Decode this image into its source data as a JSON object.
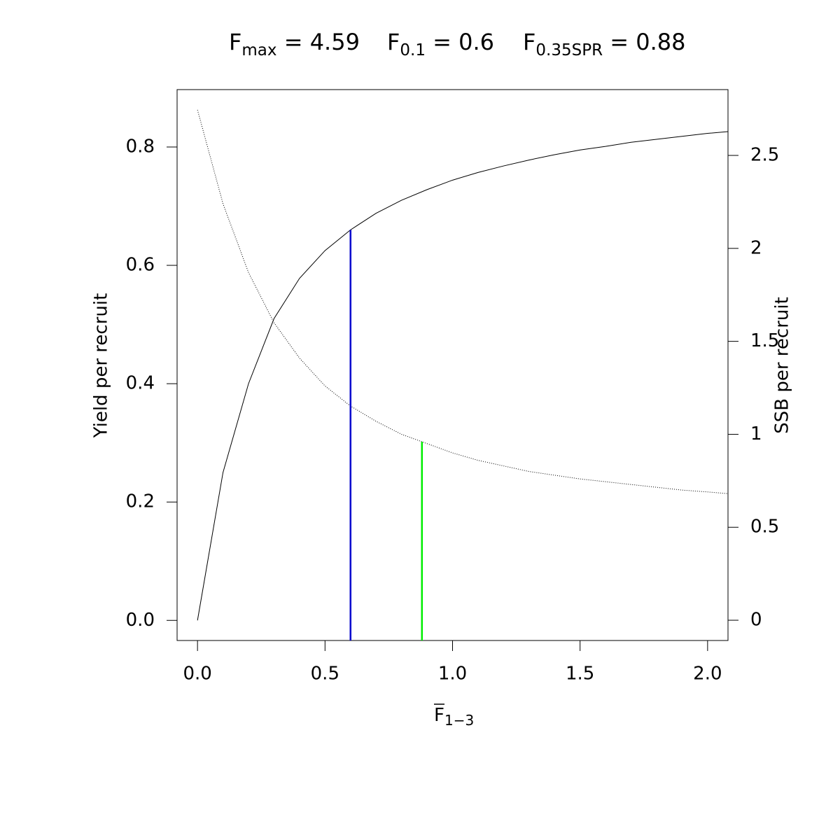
{
  "chart_data": {
    "type": "line",
    "title_parts": [
      {
        "symbol": "F",
        "sub": "max",
        "rest": " = 4.59"
      },
      {
        "symbol": "F",
        "sub": "0.1",
        "rest": " = 0.6"
      },
      {
        "symbol": "F",
        "sub": "0.35SPR",
        "rest": " = 0.88"
      }
    ],
    "xlabel": {
      "symbol": "F",
      "sub": "1−3"
    },
    "ylabel": "Yield per recruit",
    "y2label": "SSB per recruit",
    "x": [
      0,
      0.1,
      0.2,
      0.3,
      0.4,
      0.5,
      0.6,
      0.7,
      0.8,
      0.9,
      1.0,
      1.1,
      1.2,
      1.3,
      1.4,
      1.5,
      1.6,
      1.7,
      1.8,
      1.9,
      2.0,
      2.08
    ],
    "series": [
      {
        "color": "#000000",
        "style": "solid",
        "axis": "y",
        "values": [
          0,
          0.25,
          0.4,
          0.51,
          0.578,
          0.625,
          0.66,
          0.688,
          0.71,
          0.728,
          0.744,
          0.757,
          0.768,
          0.778,
          0.787,
          0.795,
          0.801,
          0.808,
          0.813,
          0.818,
          0.823,
          0.826
        ]
      },
      {
        "color": "#000000",
        "style": "dotted",
        "axis": "y2",
        "values": [
          2.745,
          2.24,
          1.87,
          1.6,
          1.41,
          1.26,
          1.152,
          1.07,
          1.0,
          0.95,
          0.9,
          0.86,
          0.83,
          0.8,
          0.78,
          0.76,
          0.745,
          0.73,
          0.715,
          0.7,
          0.69,
          0.681
        ]
      }
    ],
    "reference_lines": [
      {
        "x": 0.6,
        "y": 0.66,
        "axis": "y",
        "color": "#0000cd"
      },
      {
        "x": 0.88,
        "y": 0.96,
        "axis": "y2",
        "color": "#00ee00"
      }
    ],
    "xlim": [
      -0.08,
      2.08
    ],
    "ylim": [
      -0.034,
      0.897
    ],
    "y2lim": [
      -0.109,
      2.854
    ],
    "xticks": [
      {
        "value": 0,
        "label": "0.0"
      },
      {
        "value": 0.5,
        "label": "0.5"
      },
      {
        "value": 1.0,
        "label": "1.0"
      },
      {
        "value": 1.5,
        "label": "1.5"
      },
      {
        "value": 2.0,
        "label": "2.0"
      }
    ],
    "yticks": [
      {
        "value": 0,
        "label": "0.0"
      },
      {
        "value": 0.2,
        "label": "0.2"
      },
      {
        "value": 0.4,
        "label": "0.4"
      },
      {
        "value": 0.6,
        "label": "0.6"
      },
      {
        "value": 0.8,
        "label": "0.8"
      }
    ],
    "y2ticks": [
      0,
      0.5,
      1,
      1.5,
      2,
      2.5
    ]
  }
}
